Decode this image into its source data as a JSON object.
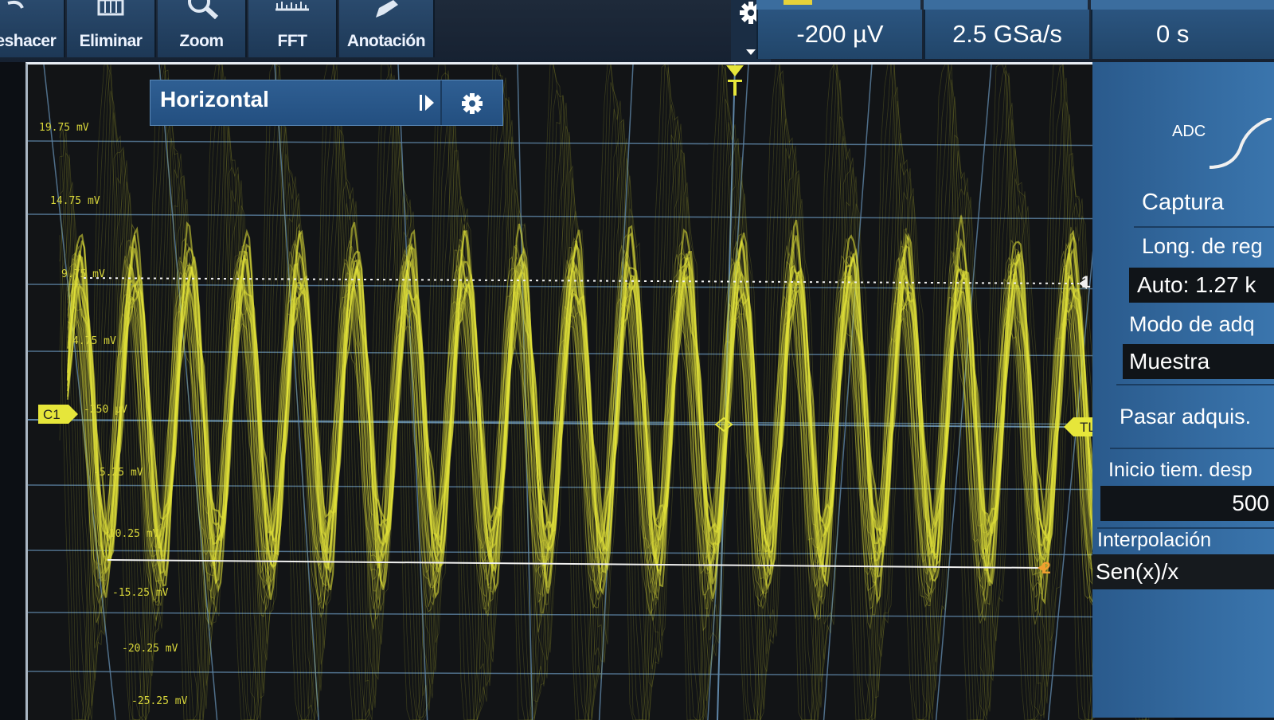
{
  "toolbar": {
    "buttons": [
      {
        "label": "Deshacer",
        "icon": "undo-icon"
      },
      {
        "label": "Eliminar",
        "icon": "delete-icon"
      },
      {
        "label": "Zoom",
        "icon": "zoom-icon"
      },
      {
        "label": "FFT",
        "icon": "fft-icon"
      },
      {
        "label": "Anotación",
        "icon": "annotation-icon"
      }
    ],
    "settings_icon": "gear-icon",
    "readouts": {
      "trigger_level": "-200 µV",
      "sample_rate": "2.5 GSa/s",
      "horizontal_position": "0 s"
    }
  },
  "screen": {
    "trace_color": "#e6e63a",
    "grid_color": "#5f86a8",
    "volt_labels": [
      "19.75 mV",
      "14.75 mV",
      "9.75 mV",
      "4.75 mV",
      "-250 µV",
      "-5.25 mV",
      "-10.25 mV",
      "-15.25 mV",
      "-20.25 mV",
      "-25.25 mV"
    ],
    "channel_marker": "C1",
    "trigger_marker": "TL",
    "cursor_1": "1",
    "cursor_2": "2",
    "horizontal_panel": {
      "title": "Horizontal",
      "play_icon": "play-icon",
      "settings_icon": "gear-icon"
    }
  },
  "sidepanel": {
    "adc_label": "ADC",
    "section_title": "Captura",
    "record_length_label": "Long. de reg",
    "record_length_value": "Auto: 1.27 k",
    "acq_mode_label": "Modo de adq",
    "acq_mode_value": "Muestra",
    "pass_acq_label": "Pasar adquis.",
    "time_start_label": "Inicio tiem. desp",
    "time_start_value": "500",
    "interp_label": "Interpolación",
    "interp_value": "Sen(x)/x"
  }
}
